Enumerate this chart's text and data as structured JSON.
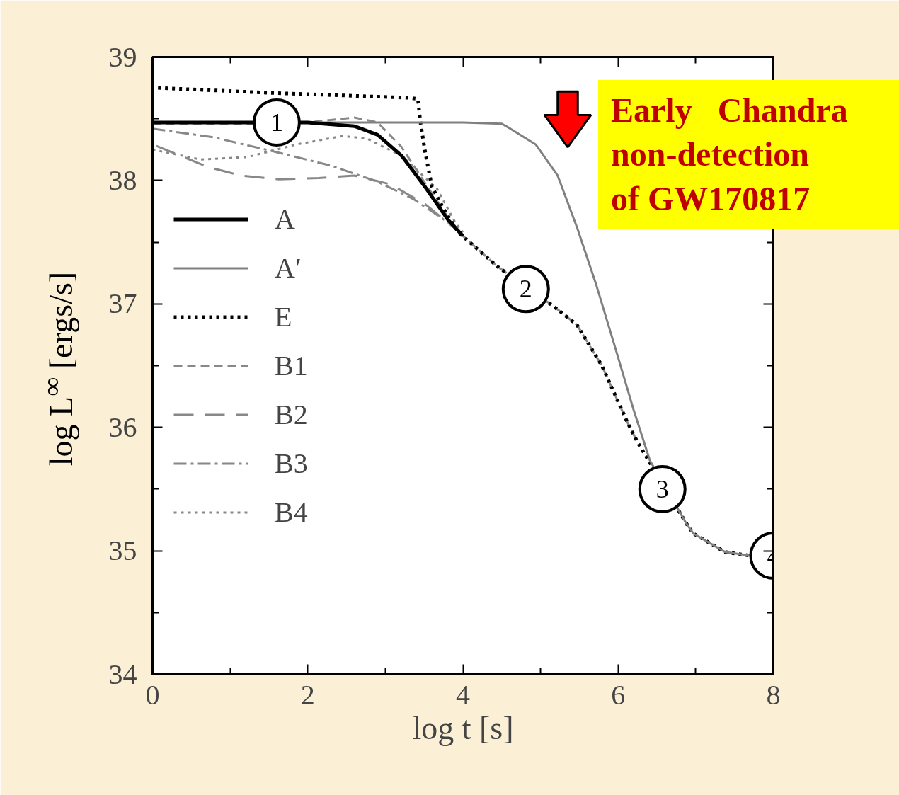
{
  "chart_data": {
    "type": "line",
    "xlabel": "log t [s]",
    "ylabel": "log L$^{∞}$ [ergs/s]",
    "xlim": [
      0,
      8
    ],
    "ylim": [
      34,
      39
    ],
    "xticks": [
      0,
      {
        "value": 1,
        "label": null
      },
      2,
      {
        "value": 3,
        "label": null
      },
      4,
      {
        "value": 5,
        "label": null
      },
      6,
      {
        "value": 7,
        "label": null
      },
      8
    ],
    "yticks": [
      34,
      {
        "value": 34.5,
        "label": null
      },
      35,
      {
        "value": 35.5,
        "label": null
      },
      36,
      {
        "value": 36.5,
        "label": null
      },
      37,
      {
        "value": 37.5,
        "label": null
      },
      38,
      {
        "value": 38.5,
        "label": null
      },
      39
    ],
    "grid": false,
    "legend": "left",
    "marker": "none",
    "series": [
      {
        "name": "A",
        "color": "#000000",
        "line_style": "solid",
        "x": [
          0,
          1.2,
          2.0,
          2.6,
          2.9,
          3.21,
          3.51,
          3.81,
          4.0
        ],
        "values": [
          38.47,
          38.47,
          38.47,
          38.44,
          38.37,
          38.2,
          37.95,
          37.68,
          37.55
        ]
      },
      {
        "name": "A′",
        "color": "#808080",
        "line_style": "solid",
        "x": [
          0,
          1.2,
          2.0,
          4,
          4.5,
          4.61,
          4.94,
          5.22,
          5.47,
          5.71,
          5.96,
          6.2,
          6.41,
          6.88,
          6.97,
          7.38,
          7.71
        ],
        "values": [
          38.47,
          38.47,
          38.47,
          38.47,
          38.46,
          38.42,
          38.29,
          38.04,
          37.62,
          37.17,
          36.65,
          36.14,
          35.73,
          35.22,
          35.14,
          34.99,
          34.96
        ]
      },
      {
        "name": "E",
        "color": "#000000",
        "line_style": "dotted",
        "x": [
          0.07,
          1.5,
          3.3,
          3.42,
          3.45,
          3.51,
          3.6,
          3.76,
          3.94,
          4.45,
          5.17,
          5.47,
          5.79,
          6.12,
          6.25,
          6.88,
          6.97,
          7.38,
          7.71
        ],
        "values": [
          38.75,
          38.71,
          38.67,
          38.66,
          38.48,
          38.24,
          37.95,
          37.76,
          37.58,
          37.3,
          36.98,
          36.83,
          36.5,
          36.04,
          35.88,
          35.22,
          35.14,
          34.99,
          34.96
        ]
      },
      {
        "name": "B1",
        "color": "#888888",
        "line_style": "dashed",
        "x": [
          0,
          1.2,
          1.99,
          2.6,
          2.9,
          3.21,
          3.51,
          3.81,
          4.0,
          4.45,
          5.17,
          5.47,
          5.79,
          6.12,
          6.25
        ],
        "values": [
          38.46,
          38.46,
          38.47,
          38.51,
          38.47,
          38.27,
          37.98,
          37.7,
          37.55,
          37.3,
          36.98,
          36.83,
          36.5,
          36.04,
          35.88
        ]
      },
      {
        "name": "B2",
        "color": "#888888",
        "line_style": "longdash",
        "x": [
          0.05,
          0.71,
          1.14,
          1.63,
          2.14,
          2.6,
          3.06,
          3.51,
          3.88,
          4.0
        ],
        "values": [
          38.28,
          38.11,
          38.04,
          38.01,
          38.02,
          38.04,
          37.97,
          37.81,
          37.62,
          37.55
        ]
      },
      {
        "name": "B3",
        "color": "#888888",
        "line_style": "dashdot",
        "x": [
          0,
          0.78,
          1.53,
          2.3,
          2.9,
          3.36,
          3.81,
          4.05
        ],
        "values": [
          38.42,
          38.35,
          38.24,
          38.12,
          37.99,
          37.85,
          37.66,
          37.53
        ]
      },
      {
        "name": "B4",
        "color": "#888888",
        "line_style": "dotted",
        "x": [
          0,
          0.62,
          1.23,
          1.84,
          2.45,
          2.76,
          3.21,
          3.67,
          3.9,
          4.0
        ],
        "values": [
          38.25,
          38.17,
          38.19,
          38.29,
          38.36,
          38.34,
          38.2,
          37.93,
          37.66,
          37.58
        ]
      }
    ],
    "annotations": [
      {
        "text": "1",
        "x": 1.6,
        "y": 38.47
      },
      {
        "text": "2",
        "x": 4.81,
        "y": 37.12
      },
      {
        "text": "3",
        "x": 6.57,
        "y": 35.5
      },
      "4",
      "Early   Chandra\nnon-detection\nof GW170817"
    ]
  }
}
